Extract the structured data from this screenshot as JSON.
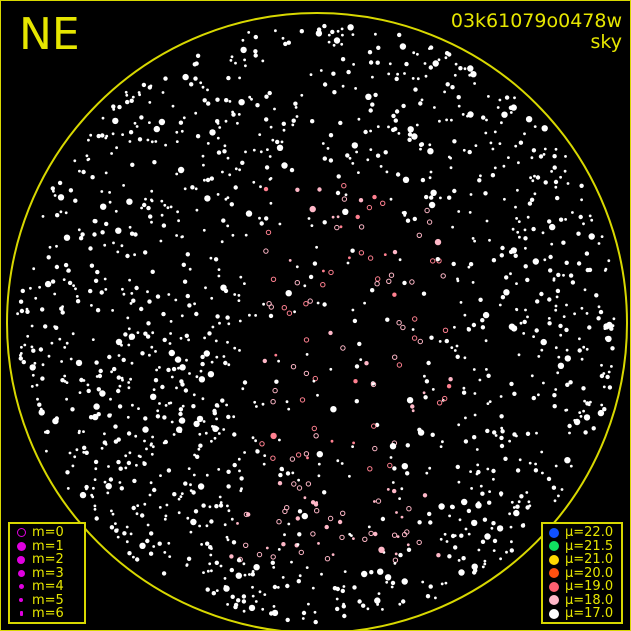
{
  "direction": "NE",
  "observation_id": "03k61079o0478w",
  "observation_kind": "sky",
  "colors": {
    "frame": "#d8d800",
    "horizon": "#d8d800",
    "text": "#e6e600",
    "magnitude_symbol": "#e000e0"
  },
  "magnitude_legend": [
    {
      "label": "m=0",
      "symbol": "open-circle"
    },
    {
      "label": "m=1",
      "symbol": "dot"
    },
    {
      "label": "m=2",
      "symbol": "dot"
    },
    {
      "label": "m=3",
      "symbol": "dot"
    },
    {
      "label": "m=4",
      "symbol": "dot"
    },
    {
      "label": "m=5",
      "symbol": "dot"
    },
    {
      "label": "m=6",
      "symbol": "dot"
    }
  ],
  "sky_brightness_legend": [
    {
      "label": "μ=22.0",
      "color": "#1050ff"
    },
    {
      "label": "μ=21.5",
      "color": "#10e060"
    },
    {
      "label": "μ=21.0",
      "color": "#ffd800"
    },
    {
      "label": "μ=20.0",
      "color": "#ff5010"
    },
    {
      "label": "μ=19.0",
      "color": "#ff6070"
    },
    {
      "label": "μ=18.0",
      "color": "#ffb8c8"
    },
    {
      "label": "μ=17.0",
      "color": "#ffffff"
    }
  ]
}
